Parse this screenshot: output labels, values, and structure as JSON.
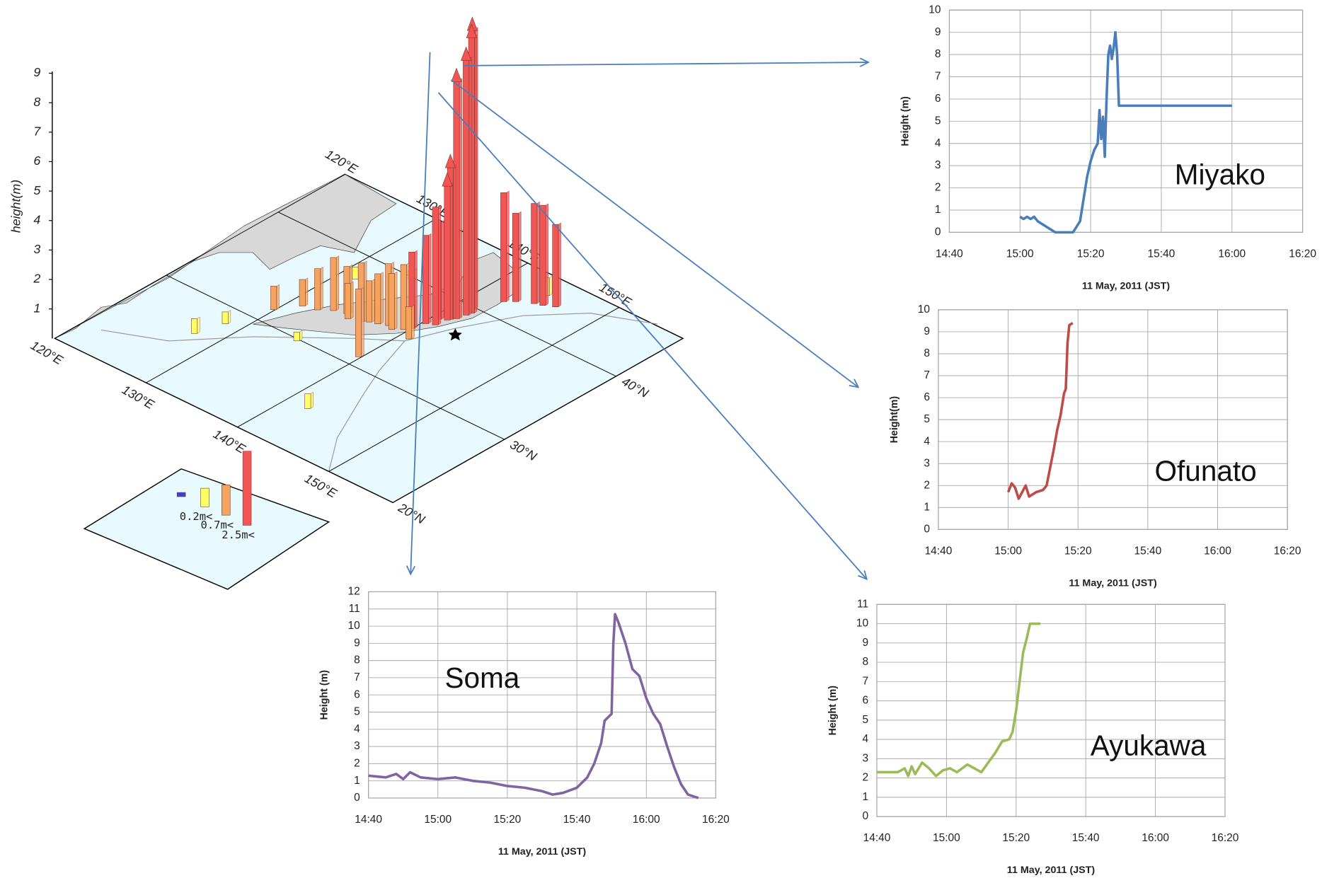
{
  "chart_data": [
    {
      "type": "bar3d",
      "zlabel": "height(m)",
      "zticks": [
        1,
        2,
        3,
        4,
        5,
        6,
        7,
        8,
        9
      ],
      "lonlim": [
        120,
        157
      ],
      "latlim": [
        20,
        46
      ],
      "lonticks": [
        {
          "value": 120,
          "label": "120°E"
        },
        {
          "value": 130,
          "label": "130°E"
        },
        {
          "value": 140,
          "label": "140°E"
        },
        {
          "value": 150,
          "label": "150°E"
        }
      ],
      "latticks": [
        {
          "value": 20,
          "label": "20°N"
        },
        {
          "value": 30,
          "label": "30°N"
        },
        {
          "value": 40,
          "label": "40°N"
        }
      ],
      "legend": [
        {
          "label": null,
          "value": 0,
          "color": "#3344dd"
        },
        {
          "label": "0.2m<",
          "value": 0.2,
          "color": "#ffff66"
        },
        {
          "label": "0.7m<",
          "value": 0.7,
          "color": "#f4a460"
        },
        {
          "label": "2.5m<",
          "value": 2.5,
          "color": "#f25555"
        }
      ],
      "bars": {
        "lon": [
          127.7,
          128.5,
          129.9,
          131.2,
          132.5,
          133.5,
          134.6,
          135.2,
          136.3,
          136.8,
          137.5,
          138.3,
          138.9,
          139.6,
          140.0,
          140.3,
          140.6,
          140.9,
          141.0,
          141.2,
          141.5,
          141.9,
          141.8,
          141.6,
          141.3,
          142.6,
          143.3,
          144.6,
          145.3,
          146.2,
          134.5,
          139.8,
          142.2,
          131.5,
          134.8,
          144.5
        ],
        "lat": [
          26.2,
          28.3,
          31.5,
          33.0,
          33.3,
          33.9,
          34.2,
          33.8,
          34.1,
          34.4,
          34.6,
          34.9,
          34.7,
          35.2,
          35.6,
          36.6,
          37.5,
          34.6,
          36.9,
          37.8,
          39.8,
          39.4,
          39.0,
          38.3,
          38.0,
          41.7,
          42.2,
          42.8,
          43.0,
          43.4,
          29.8,
          31.0,
          24.5,
          37.5,
          39.8,
          44.0
        ],
        "height": [
          0.5,
          0.4,
          0.8,
          0.9,
          1.4,
          1.8,
          1.6,
          1.2,
          2.0,
          1.4,
          1.7,
          2.1,
          1.9,
          2.2,
          2.6,
          3.0,
          3.3,
          1.1,
          4.0,
          4.6,
          9.5,
          9.4,
          8.7,
          8.1,
          5.2,
          3.7,
          3.0,
          3.4,
          3.4,
          2.8,
          0.3,
          2.3,
          0.5,
          0.4,
          0.3,
          0.6
        ]
      }
    },
    {
      "type": "line",
      "annotation": "Miyako",
      "ylabel": "Height (m)",
      "xlabel": "11 May, 2011  (JST)",
      "color": "#4a7ebb",
      "xlim": [
        880,
        980
      ],
      "ylim": [
        0,
        10
      ],
      "xticks": [
        {
          "value": 880,
          "label": "14:40"
        },
        {
          "value": 900,
          "label": "15:00"
        },
        {
          "value": 920,
          "label": "15:20"
        },
        {
          "value": 940,
          "label": "15:40"
        },
        {
          "value": 960,
          "label": "16:00"
        },
        {
          "value": 980,
          "label": "16:20"
        }
      ],
      "yticks": [
        0,
        1,
        2,
        3,
        4,
        5,
        6,
        7,
        8,
        9,
        10
      ],
      "x": [
        900,
        901,
        902,
        903,
        904,
        905,
        906,
        907,
        908,
        909,
        910,
        915,
        917,
        918,
        919,
        920,
        921,
        922,
        922.5,
        923,
        923.5,
        924,
        924.5,
        925,
        925.5,
        926,
        926.5,
        927,
        927.5,
        928,
        960
      ],
      "values": [
        0.7,
        0.6,
        0.7,
        0.6,
        0.7,
        0.5,
        0.4,
        0.3,
        0.2,
        0.1,
        0,
        0,
        0.5,
        1.5,
        2.5,
        3.2,
        3.7,
        4,
        5.5,
        4.2,
        5.2,
        3.4,
        6,
        8,
        8.4,
        7.8,
        8.3,
        9,
        8,
        5.7,
        5.7
      ]
    },
    {
      "type": "line",
      "annotation": "Ofunato",
      "ylabel": "Height(m)",
      "xlabel": "11 May, 2011  (JST)",
      "color": "#be4b48",
      "xlim": [
        880,
        980
      ],
      "ylim": [
        0,
        10
      ],
      "xticks": [
        {
          "value": 880,
          "label": "14:40"
        },
        {
          "value": 900,
          "label": "15:00"
        },
        {
          "value": 920,
          "label": "15:20"
        },
        {
          "value": 940,
          "label": "15:40"
        },
        {
          "value": 960,
          "label": "16:00"
        },
        {
          "value": 980,
          "label": "16:20"
        }
      ],
      "yticks": [
        0,
        1,
        2,
        3,
        4,
        5,
        6,
        7,
        8,
        9,
        10
      ],
      "x": [
        900,
        901,
        902,
        903,
        904,
        905,
        906,
        908,
        910,
        911,
        912,
        913,
        914,
        915,
        916,
        916.5,
        917,
        917.5,
        918.5
      ],
      "values": [
        1.7,
        2.1,
        1.9,
        1.4,
        1.7,
        2.0,
        1.5,
        1.7,
        1.8,
        2.0,
        2.8,
        3.6,
        4.5,
        5.2,
        6.2,
        6.4,
        8.5,
        9.3,
        9.4
      ]
    },
    {
      "type": "line",
      "annotation": "Soma",
      "ylabel": "Height (m)",
      "xlabel": "11 May, 2011 (JST)",
      "color": "#8064a2",
      "xlim": [
        880,
        980
      ],
      "ylim": [
        0,
        12
      ],
      "xticks": [
        {
          "value": 880,
          "label": "14:40"
        },
        {
          "value": 900,
          "label": "15:00"
        },
        {
          "value": 920,
          "label": "15:20"
        },
        {
          "value": 940,
          "label": "15:40"
        },
        {
          "value": 960,
          "label": "16:00"
        },
        {
          "value": 980,
          "label": "16:20"
        }
      ],
      "yticks": [
        0,
        1,
        2,
        3,
        4,
        5,
        6,
        7,
        8,
        9,
        10,
        11,
        12
      ],
      "x": [
        880,
        885,
        888,
        890,
        892,
        895,
        900,
        905,
        910,
        915,
        920,
        925,
        930,
        933,
        936,
        940,
        943,
        945,
        947,
        948,
        950,
        950.5,
        951,
        952,
        954,
        956,
        958,
        960,
        962,
        964,
        966,
        968,
        970,
        972,
        975
      ],
      "values": [
        1.3,
        1.2,
        1.4,
        1.1,
        1.5,
        1.2,
        1.1,
        1.2,
        1.0,
        0.9,
        0.7,
        0.6,
        0.4,
        0.2,
        0.3,
        0.6,
        1.2,
        2.0,
        3.2,
        4.5,
        4.9,
        9,
        10.7,
        10.2,
        9.0,
        7.5,
        7.1,
        5.8,
        4.9,
        4.3,
        3.0,
        1.8,
        0.8,
        0.2,
        0
      ]
    },
    {
      "type": "line",
      "annotation": "Ayukawa",
      "ylabel": "Height (m)",
      "xlabel": "11 May, 2011 (JST)",
      "color": "#9bbb59",
      "xlim": [
        880,
        980
      ],
      "ylim": [
        0,
        11
      ],
      "xticks": [
        {
          "value": 880,
          "label": "14:40"
        },
        {
          "value": 900,
          "label": "15:00"
        },
        {
          "value": 920,
          "label": "15:20"
        },
        {
          "value": 940,
          "label": "15:40"
        },
        {
          "value": 960,
          "label": "16:00"
        },
        {
          "value": 980,
          "label": "16:20"
        }
      ],
      "yticks": [
        0,
        1,
        2,
        3,
        4,
        5,
        6,
        7,
        8,
        9,
        10,
        11
      ],
      "x": [
        880,
        886,
        888,
        889,
        890,
        891,
        893,
        895,
        897,
        899,
        901,
        903,
        906,
        908,
        910,
        912,
        914,
        916,
        918,
        919,
        920,
        921,
        922,
        923,
        924,
        927
      ],
      "values": [
        2.3,
        2.3,
        2.5,
        2.1,
        2.6,
        2.2,
        2.8,
        2.5,
        2.1,
        2.4,
        2.5,
        2.3,
        2.7,
        2.5,
        2.3,
        2.8,
        3.3,
        3.9,
        4.0,
        4.4,
        5.5,
        7,
        8.5,
        9.2,
        10,
        10
      ]
    }
  ]
}
